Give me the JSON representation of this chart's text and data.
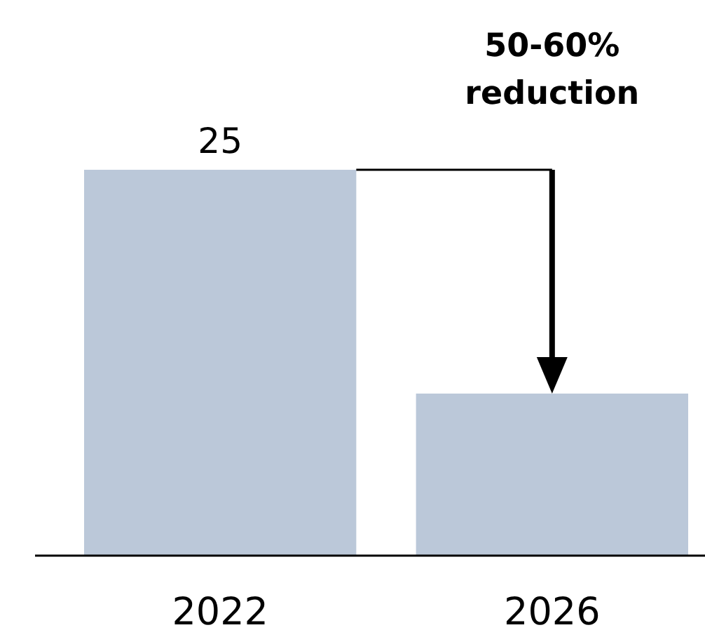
{
  "chart_data": {
    "type": "bar",
    "categories": [
      "2022",
      "2026"
    ],
    "values": [
      25,
      10.5
    ],
    "value_labels": [
      "25",
      null
    ],
    "color": "#bbc8d9",
    "annotations": [
      "50-60% reduction"
    ]
  }
}
